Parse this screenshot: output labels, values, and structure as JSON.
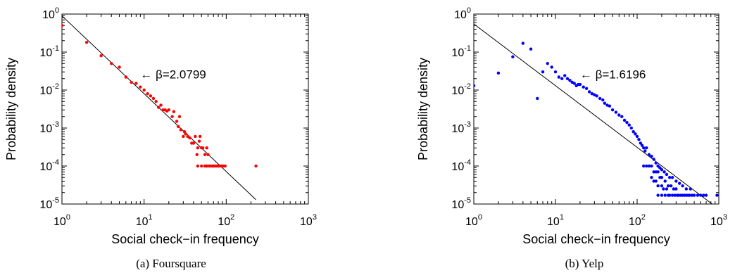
{
  "chart_data": [
    {
      "type": "scatter",
      "caption": "(a)  Foursquare",
      "xlabel": "Social check−in frequency",
      "ylabel": "Probability density",
      "x_scale": "log",
      "y_scale": "log",
      "xlim": [
        1,
        1000
      ],
      "ylim": [
        1e-05,
        1
      ],
      "x_ticks": [
        {
          "base": "10",
          "exp": "0"
        },
        {
          "base": "10",
          "exp": "1"
        },
        {
          "base": "10",
          "exp": "2"
        },
        {
          "base": "10",
          "exp": "3"
        }
      ],
      "y_ticks": [
        {
          "base": "10",
          "exp": "-5"
        },
        {
          "base": "10",
          "exp": "-4"
        },
        {
          "base": "10",
          "exp": "-3"
        },
        {
          "base": "10",
          "exp": "-2"
        },
        {
          "base": "10",
          "exp": "-1"
        },
        {
          "base": "10",
          "exp": "0"
        }
      ],
      "point_color": "#ff0000",
      "fit_line": {
        "x": [
          1,
          230
        ],
        "y": [
          0.9,
          1.3e-05
        ],
        "color": "#000000"
      },
      "annotation": {
        "text": "← β=2.0799",
        "x": 9,
        "y": 0.02
      },
      "points": [
        [
          1,
          0.5
        ],
        [
          2,
          0.18
        ],
        [
          3,
          0.08
        ],
        [
          4,
          0.05
        ],
        [
          5,
          0.04
        ],
        [
          6,
          0.022
        ],
        [
          7,
          0.016
        ],
        [
          8,
          0.015
        ],
        [
          9,
          0.012
        ],
        [
          10,
          0.01
        ],
        [
          11,
          0.008
        ],
        [
          12,
          0.007
        ],
        [
          13,
          0.006
        ],
        [
          14,
          0.005
        ],
        [
          15,
          0.0035
        ],
        [
          16,
          0.004
        ],
        [
          17,
          0.003
        ],
        [
          18,
          0.003
        ],
        [
          19,
          0.0028
        ],
        [
          20,
          0.003
        ],
        [
          22,
          0.002
        ],
        [
          23,
          0.0027
        ],
        [
          25,
          0.0015
        ],
        [
          26,
          0.0011
        ],
        [
          27,
          0.002
        ],
        [
          28,
          0.0009
        ],
        [
          30,
          0.0006
        ],
        [
          31,
          0.0008
        ],
        [
          32,
          0.0007
        ],
        [
          34,
          0.0006
        ],
        [
          36,
          0.00055
        ],
        [
          38,
          0.0004
        ],
        [
          40,
          0.0004
        ],
        [
          42,
          0.0006
        ],
        [
          44,
          0.0002
        ],
        [
          45,
          0.0003
        ],
        [
          47,
          0.00045
        ],
        [
          48,
          0.0006
        ],
        [
          50,
          0.0003
        ],
        [
          52,
          0.0003
        ],
        [
          55,
          0.0002
        ],
        [
          58,
          0.0003
        ],
        [
          60,
          0.0002
        ],
        [
          62,
          0.0001
        ],
        [
          65,
          0.0001
        ],
        [
          68,
          0.0001
        ],
        [
          70,
          0.0001
        ],
        [
          73,
          0.0001
        ],
        [
          76,
          0.0001
        ],
        [
          80,
          0.0001
        ],
        [
          84,
          0.0001
        ],
        [
          88,
          0.0001
        ],
        [
          92,
          0.0001
        ],
        [
          97,
          0.0001
        ],
        [
          230,
          0.0001
        ],
        [
          45,
          0.0001
        ],
        [
          50,
          0.0001
        ],
        [
          55,
          0.0001
        ],
        [
          58,
          0.0001
        ]
      ]
    },
    {
      "type": "scatter",
      "caption": "(b)  Yelp",
      "xlabel": "Social check−in frequency",
      "ylabel": "Probability density",
      "x_scale": "log",
      "y_scale": "log",
      "xlim": [
        1,
        1000
      ],
      "ylim": [
        1e-05,
        1
      ],
      "x_ticks": [
        {
          "base": "10",
          "exp": "0"
        },
        {
          "base": "10",
          "exp": "1"
        },
        {
          "base": "10",
          "exp": "2"
        },
        {
          "base": "10",
          "exp": "3"
        }
      ],
      "y_ticks": [
        {
          "base": "10",
          "exp": "-5"
        },
        {
          "base": "10",
          "exp": "-4"
        },
        {
          "base": "10",
          "exp": "-3"
        },
        {
          "base": "10",
          "exp": "-2"
        },
        {
          "base": "10",
          "exp": "-1"
        },
        {
          "base": "10",
          "exp": "0"
        }
      ],
      "point_color": "#0000ff",
      "fit_line": {
        "x": [
          1,
          950
        ],
        "y": [
          0.55,
          8e-06
        ],
        "color": "#000000"
      },
      "annotation": {
        "text": "← β=1.6196",
        "x": 20,
        "y": 0.02
      },
      "points": [
        [
          1,
          0.013
        ],
        [
          2,
          0.028
        ],
        [
          3,
          0.075
        ],
        [
          4,
          0.17
        ],
        [
          5,
          0.12
        ],
        [
          6,
          0.006
        ],
        [
          7,
          0.03
        ],
        [
          8,
          0.05
        ],
        [
          9,
          0.04
        ],
        [
          10,
          0.03
        ],
        [
          11,
          0.022
        ],
        [
          12,
          0.02
        ],
        [
          13,
          0.024
        ],
        [
          14,
          0.02
        ],
        [
          15,
          0.018
        ],
        [
          16,
          0.016
        ],
        [
          17,
          0.015
        ],
        [
          18,
          0.013
        ],
        [
          19,
          0.014
        ],
        [
          20,
          0.014
        ],
        [
          22,
          0.012
        ],
        [
          24,
          0.011
        ],
        [
          26,
          0.009
        ],
        [
          28,
          0.008
        ],
        [
          30,
          0.0075
        ],
        [
          32,
          0.007
        ],
        [
          35,
          0.006
        ],
        [
          38,
          0.0055
        ],
        [
          40,
          0.0045
        ],
        [
          43,
          0.004
        ],
        [
          46,
          0.0038
        ],
        [
          50,
          0.003
        ],
        [
          55,
          0.0026
        ],
        [
          60,
          0.0022
        ],
        [
          65,
          0.002
        ],
        [
          70,
          0.0016
        ],
        [
          75,
          0.0014
        ],
        [
          80,
          0.0012
        ],
        [
          85,
          0.001
        ],
        [
          90,
          0.0008
        ],
        [
          95,
          0.0007
        ],
        [
          100,
          0.0006
        ],
        [
          105,
          0.0005
        ],
        [
          110,
          0.0004
        ],
        [
          115,
          0.00035
        ],
        [
          120,
          0.0003
        ],
        [
          125,
          0.00025
        ],
        [
          130,
          0.0003
        ],
        [
          140,
          0.0002
        ],
        [
          150,
          0.00018
        ],
        [
          160,
          0.00015
        ],
        [
          170,
          0.00012
        ],
        [
          180,
          0.0001
        ],
        [
          190,
          9e-05
        ],
        [
          200,
          8e-05
        ],
        [
          215,
          7e-05
        ],
        [
          230,
          6e-05
        ],
        [
          250,
          5e-05
        ],
        [
          270,
          5e-05
        ],
        [
          300,
          4e-05
        ],
        [
          330,
          3.5e-05
        ],
        [
          360,
          3e-05
        ],
        [
          400,
          2.5e-05
        ],
        [
          450,
          2.5e-05
        ],
        [
          500,
          1.7e-05
        ],
        [
          550,
          1.7e-05
        ],
        [
          600,
          1.7e-05
        ],
        [
          650,
          1.7e-05
        ],
        [
          700,
          1.7e-05
        ],
        [
          950,
          1.7e-05
        ],
        [
          120,
          0.0001
        ],
        [
          130,
          0.0001
        ],
        [
          140,
          0.0001
        ],
        [
          150,
          0.0001
        ],
        [
          160,
          7e-05
        ],
        [
          170,
          7e-05
        ],
        [
          180,
          7e-05
        ],
        [
          190,
          5e-05
        ],
        [
          200,
          5e-05
        ],
        [
          220,
          4e-05
        ],
        [
          240,
          3e-05
        ],
        [
          260,
          3e-05
        ],
        [
          280,
          2.5e-05
        ],
        [
          300,
          2.5e-05
        ],
        [
          320,
          1.7e-05
        ],
        [
          340,
          1.7e-05
        ],
        [
          360,
          1.7e-05
        ],
        [
          380,
          1.7e-05
        ],
        [
          400,
          1.7e-05
        ],
        [
          420,
          1.7e-05
        ],
        [
          440,
          1.7e-05
        ],
        [
          470,
          1.7e-05
        ],
        [
          150,
          5e-05
        ],
        [
          160,
          4e-05
        ],
        [
          170,
          4e-05
        ],
        [
          180,
          3e-05
        ],
        [
          200,
          3e-05
        ],
        [
          210,
          2.5e-05
        ],
        [
          230,
          2.5e-05
        ],
        [
          250,
          1.7e-05
        ],
        [
          270,
          1.7e-05
        ],
        [
          290,
          1.7e-05
        ],
        [
          310,
          1.7e-05
        ],
        [
          200,
          1.7e-05
        ],
        [
          180,
          1.7e-05
        ],
        [
          220,
          1.7e-05
        ],
        [
          240,
          1.7e-05
        ]
      ]
    }
  ]
}
